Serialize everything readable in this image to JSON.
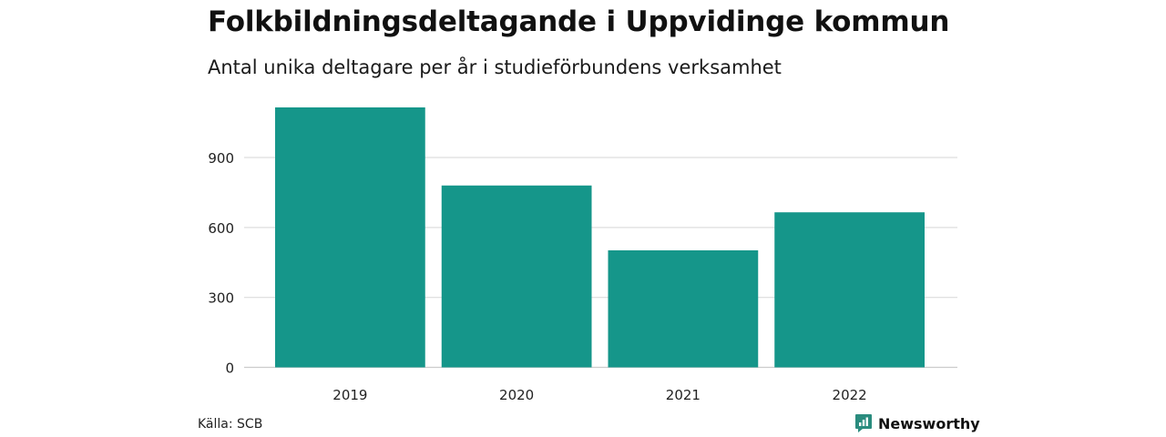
{
  "title": "Folkbildningsdeltagande i Uppvidinge kommun",
  "subtitle": "Antal unika deltagare per år i studieförbundens verksamhet",
  "source": "Källa: SCB",
  "brand": {
    "name": "Newsworthy",
    "icon": "newsworthy-logo-icon",
    "color": "#2a8c7e"
  },
  "colors": {
    "bar": "#15968a",
    "grid": "#dddddd",
    "axis": "#cccccc",
    "text": "#222222"
  },
  "chart_data": {
    "type": "bar",
    "categories": [
      "2019",
      "2020",
      "2021",
      "2022"
    ],
    "values": [
      1115,
      780,
      502,
      665
    ],
    "yticks": [
      0,
      300,
      600,
      900
    ],
    "ylim": [
      0,
      1150
    ],
    "grid": true,
    "xlabel": "",
    "ylabel": ""
  }
}
